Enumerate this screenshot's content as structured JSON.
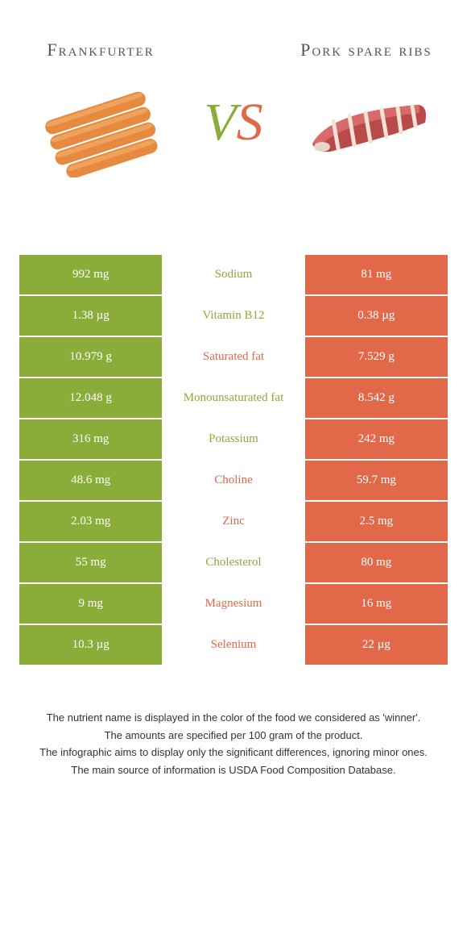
{
  "colors": {
    "left": "#8aad3a",
    "right": "#e2684a",
    "bg": "#ffffff",
    "title": "#555555",
    "foot": "#333333"
  },
  "header": {
    "left_title": "Frankfurter",
    "right_title": "Pork spare ribs",
    "vs_v": "V",
    "vs_s": "S"
  },
  "nutrients": [
    {
      "name": "Sodium",
      "left": "992 mg",
      "right": "81 mg",
      "winner": "left"
    },
    {
      "name": "Vitamin B12",
      "left": "1.38 µg",
      "right": "0.38 µg",
      "winner": "left"
    },
    {
      "name": "Saturated fat",
      "left": "10.979 g",
      "right": "7.529 g",
      "winner": "right"
    },
    {
      "name": "Monounsaturated fat",
      "left": "12.048 g",
      "right": "8.542 g",
      "winner": "left"
    },
    {
      "name": "Potassium",
      "left": "316 mg",
      "right": "242 mg",
      "winner": "left"
    },
    {
      "name": "Choline",
      "left": "48.6 mg",
      "right": "59.7 mg",
      "winner": "right"
    },
    {
      "name": "Zinc",
      "left": "2.03 mg",
      "right": "2.5 mg",
      "winner": "right"
    },
    {
      "name": "Cholesterol",
      "left": "55 mg",
      "right": "80 mg",
      "winner": "left"
    },
    {
      "name": "Magnesium",
      "left": "9 mg",
      "right": "16 mg",
      "winner": "right"
    },
    {
      "name": "Selenium",
      "left": "10.3 µg",
      "right": "22 µg",
      "winner": "right"
    }
  ],
  "footnotes": [
    "The nutrient name is displayed in the color of the food we considered as 'winner'.",
    "The amounts are specified per 100 gram of the product.",
    "The infographic aims to display only the significant differences, ignoring minor ones.",
    "The main source of information is USDA Food Composition Database."
  ]
}
